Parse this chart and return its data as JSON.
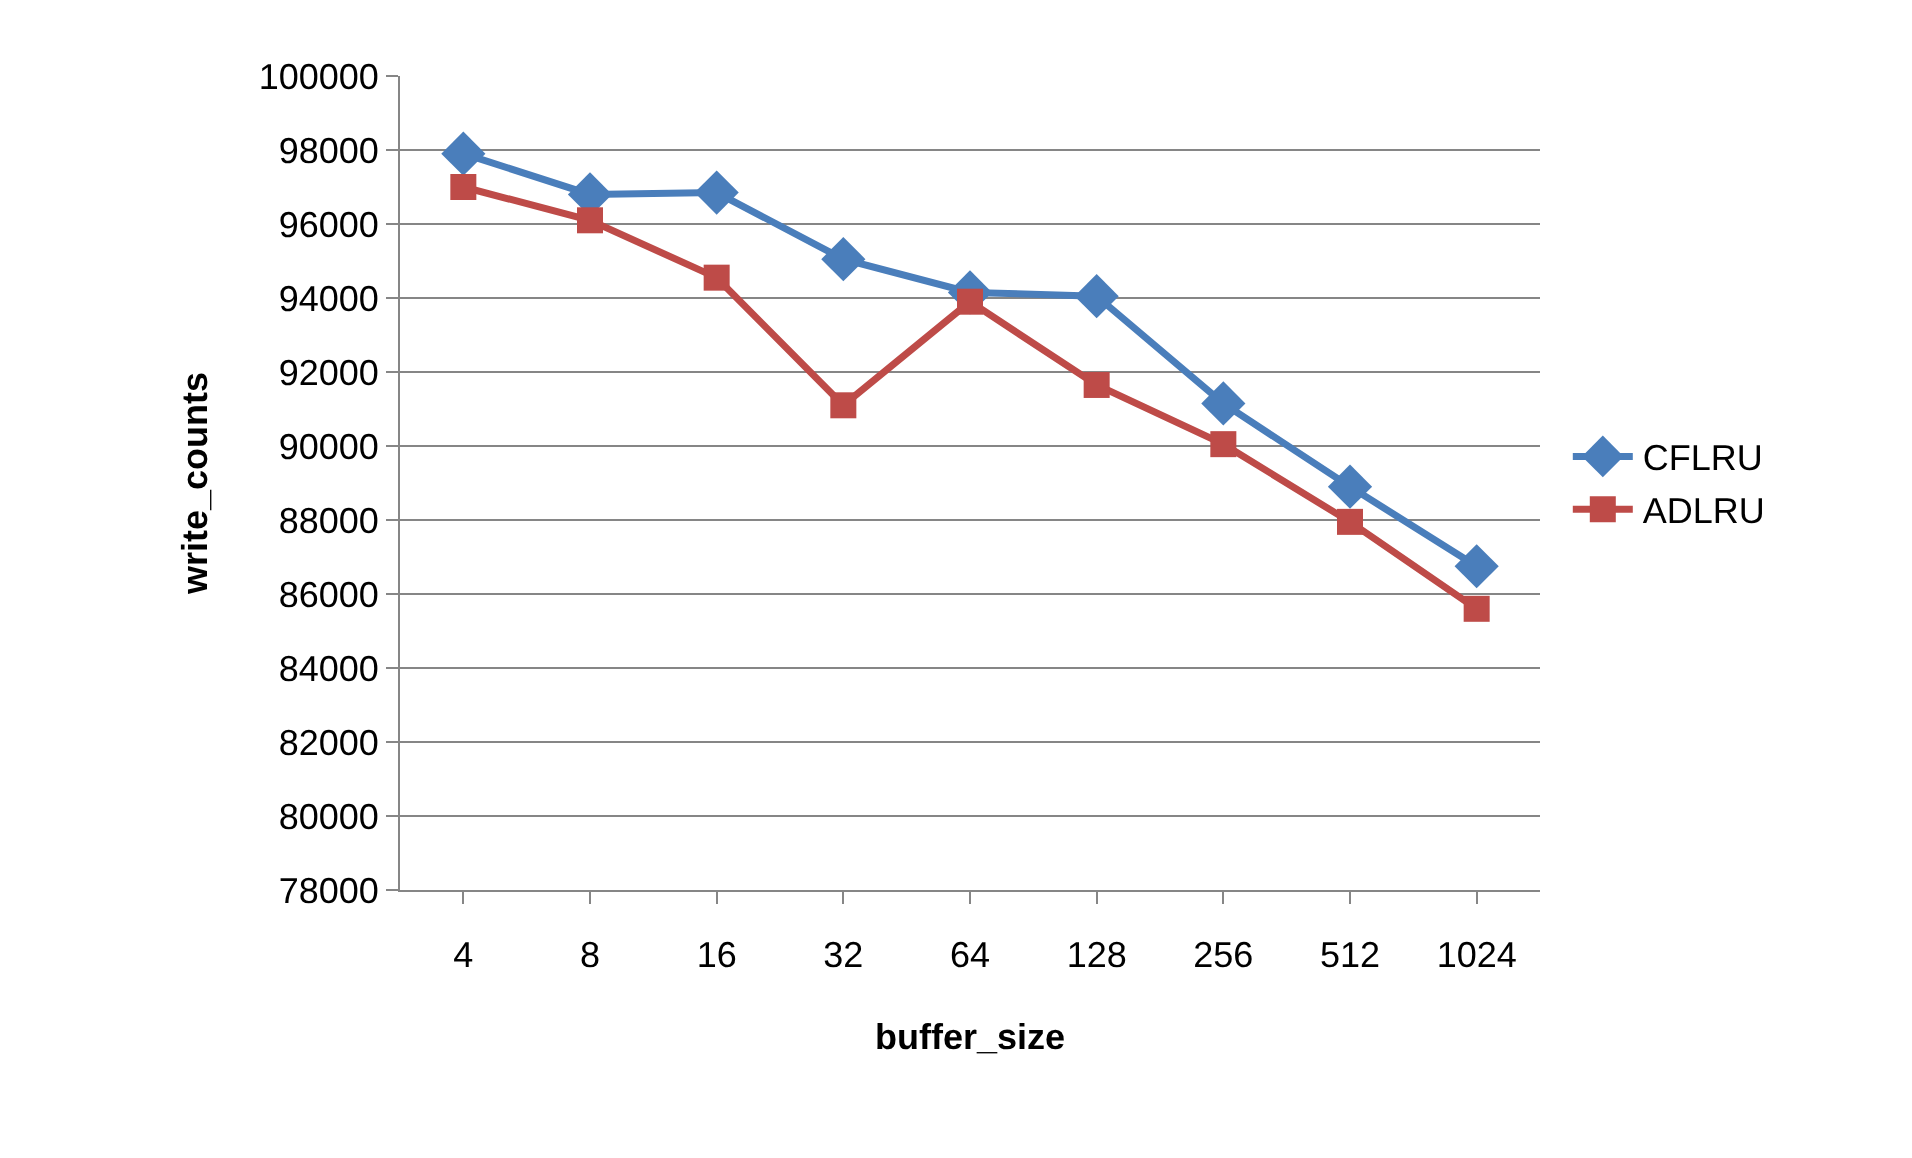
{
  "chart_data": {
    "type": "line",
    "xlabel": "buffer_size",
    "ylabel": "write_counts",
    "categories": [
      "4",
      "8",
      "16",
      "32",
      "64",
      "128",
      "256",
      "512",
      "1024"
    ],
    "series": [
      {
        "name": "CFLRU",
        "color": "#4a7ebb",
        "marker": "diamond",
        "values": [
          97900,
          96800,
          96850,
          95050,
          94150,
          94050,
          91150,
          88900,
          86750
        ]
      },
      {
        "name": "ADLRU",
        "color": "#be4b48",
        "marker": "square",
        "values": [
          97000,
          96100,
          94550,
          91100,
          93900,
          91650,
          90050,
          87950,
          85600
        ]
      }
    ],
    "ylim": [
      78000,
      100000
    ],
    "yticks": [
      78000,
      80000,
      82000,
      84000,
      86000,
      88000,
      90000,
      92000,
      94000,
      96000,
      98000,
      100000
    ],
    "grid": "y",
    "legend": "right"
  }
}
